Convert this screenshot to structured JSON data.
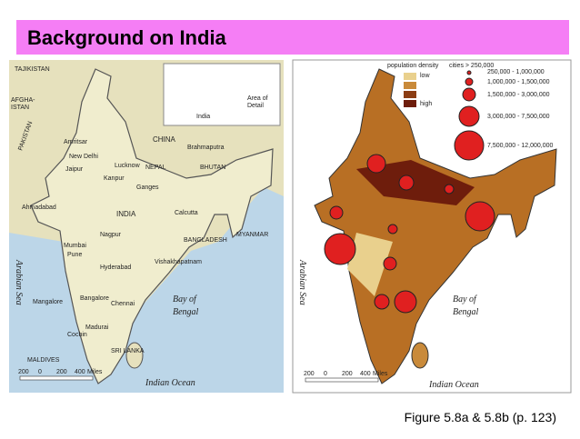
{
  "header": {
    "title": "Background on India"
  },
  "maps": [
    {
      "labels": [
        "TAJIKISTAN",
        "AFGHA-",
        "ISTAN",
        "PAKISTAN",
        "CHINA",
        "Brahmaputra",
        "NEPAL",
        "BHUTAN",
        "New Delhi",
        "Amritsar",
        "Jaipur",
        "Kanpur",
        "Lucknow",
        "Ganges",
        "Ahmadabad",
        "INDIA",
        "Calcutta",
        "Nagpur",
        "BANGLADESH",
        "MYANMAR",
        "Mumbai",
        "Pune",
        "Hyderabad",
        "Vishakhapatnam",
        "Arabian Sea",
        "Mangalore",
        "Bangalore",
        "Chennai",
        "Madurai",
        "Cochin",
        "Bay of",
        "Bengal",
        "SRI LANKA",
        "MALDIVES",
        "Indian Ocean",
        "Area of",
        "Detail",
        "India"
      ],
      "scale": [
        "200",
        "0",
        "200",
        "400",
        "Miles"
      ]
    },
    {
      "legend": {
        "density_title": "population density",
        "low": "low",
        "high": "high",
        "cities_title": "cities > 250,000",
        "cities": [
          "250,000 - 1,000,000",
          "1,000,000 - 1,500,000",
          "1,500,000 - 3,000,000",
          "3,000,000 - 7,500,000",
          "7,500,000 - 12,000,000"
        ]
      },
      "labels": [
        "Arabian Sea",
        "Bay of",
        "Bengal",
        "Indian Ocean"
      ],
      "scale": [
        "200",
        "0",
        "200",
        "400",
        "Miles"
      ]
    }
  ],
  "caption": "Figure 5.8a & 5.8b (p. 123)"
}
